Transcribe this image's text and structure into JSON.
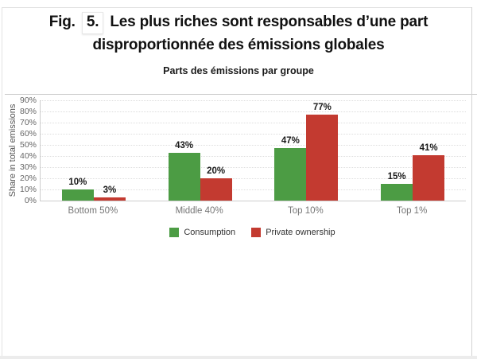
{
  "slide": {
    "title": {
      "prefix": "Fig.",
      "number": "5.",
      "line1": "Les plus riches sont responsables d’une part",
      "line2": "disproportionnée des émissions globales"
    },
    "subtitle": "Parts des émissions par groupe"
  },
  "chart_data": {
    "type": "bar",
    "title": "Parts des émissions par groupe",
    "categories": [
      "Bottom 50%",
      "Middle 40%",
      "Top 10%",
      "Top 1%"
    ],
    "series": [
      {
        "name": "Consumption",
        "color": "#4c9c44",
        "values": [
          10,
          43,
          47,
          15
        ]
      },
      {
        "name": "Private ownership",
        "color": "#c33a30",
        "values": [
          3,
          20,
          77,
          41
        ]
      }
    ],
    "ylabel": "Share in total emissions",
    "xlabel": "",
    "ylim": [
      0,
      90
    ],
    "y_tick_step": 10,
    "y_tick_suffix": "%",
    "value_label_suffix": "%",
    "grid": "dotted-horizontal",
    "legend_position": "bottom",
    "colors": {
      "axis": "#cccccc",
      "gridline": "#dddddd",
      "tick_text": "#666666",
      "category_text": "#757575",
      "value_text": "#1a1a1a",
      "legend_text": "#333333"
    }
  }
}
